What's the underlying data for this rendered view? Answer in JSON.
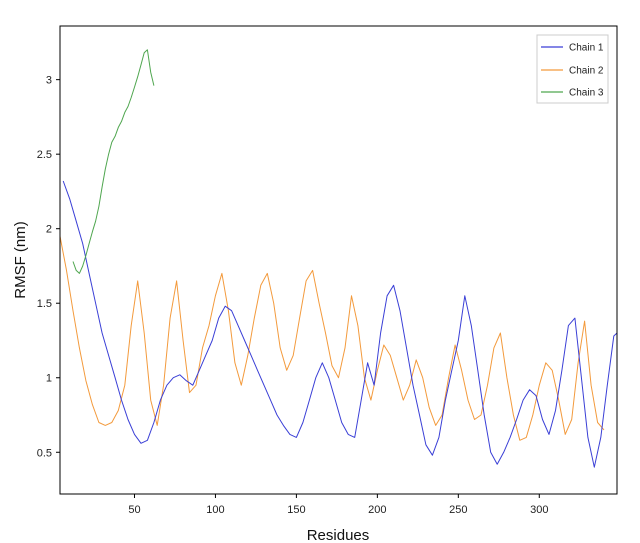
{
  "chart_data": {
    "type": "line",
    "title": "",
    "xlabel": "Residues",
    "ylabel": "RMSF (nm)",
    "xlim": [
      4,
      348
    ],
    "ylim": [
      0.22,
      3.36
    ],
    "x_ticks": [
      50,
      100,
      150,
      200,
      250,
      300
    ],
    "y_ticks": [
      0.5,
      1,
      1.5,
      2,
      2.5,
      3
    ],
    "y_tick_labels": [
      "0.5",
      "1",
      "1.5",
      "2",
      "2.5",
      "3"
    ],
    "grid": false,
    "legend_position": "top-right",
    "series": [
      {
        "name": "Chain 1",
        "color": "#3a3fd6",
        "x": [
          6,
          10,
          14,
          18,
          22,
          26,
          30,
          34,
          38,
          42,
          46,
          50,
          54,
          58,
          62,
          66,
          70,
          74,
          78,
          82,
          86,
          90,
          94,
          98,
          102,
          106,
          110,
          114,
          118,
          122,
          126,
          130,
          134,
          138,
          142,
          146,
          150,
          154,
          158,
          162,
          166,
          170,
          174,
          178,
          182,
          186,
          190,
          194,
          198,
          202,
          206,
          210,
          214,
          218,
          222,
          226,
          230,
          234,
          238,
          242,
          246,
          250,
          254,
          258,
          262,
          266,
          270,
          274,
          278,
          282,
          286,
          290,
          294,
          298,
          302,
          306,
          310,
          314,
          318,
          322,
          326,
          330,
          334,
          338,
          342,
          346,
          348
        ],
        "y": [
          2.32,
          2.2,
          2.05,
          1.9,
          1.7,
          1.5,
          1.3,
          1.15,
          1.0,
          0.85,
          0.72,
          0.62,
          0.56,
          0.58,
          0.7,
          0.85,
          0.95,
          1.0,
          1.02,
          0.98,
          0.95,
          1.05,
          1.15,
          1.25,
          1.4,
          1.48,
          1.45,
          1.35,
          1.25,
          1.15,
          1.05,
          0.95,
          0.85,
          0.75,
          0.68,
          0.62,
          0.6,
          0.7,
          0.85,
          1.0,
          1.1,
          1.0,
          0.85,
          0.7,
          0.62,
          0.6,
          0.85,
          1.1,
          0.95,
          1.3,
          1.55,
          1.62,
          1.45,
          1.2,
          0.95,
          0.75,
          0.55,
          0.48,
          0.6,
          0.85,
          1.05,
          1.25,
          1.55,
          1.35,
          1.05,
          0.75,
          0.5,
          0.42,
          0.5,
          0.6,
          0.72,
          0.85,
          0.92,
          0.88,
          0.72,
          0.62,
          0.78,
          1.05,
          1.35,
          1.4,
          1.0,
          0.6,
          0.4,
          0.6,
          0.95,
          1.28,
          1.3
        ]
      },
      {
        "name": "Chain 2",
        "color": "#f39a3c",
        "x": [
          4,
          8,
          12,
          16,
          20,
          24,
          28,
          32,
          36,
          40,
          44,
          48,
          52,
          56,
          60,
          64,
          68,
          72,
          76,
          80,
          84,
          88,
          92,
          96,
          100,
          104,
          108,
          112,
          116,
          120,
          124,
          128,
          132,
          136,
          140,
          144,
          148,
          152,
          156,
          160,
          164,
          168,
          172,
          176,
          180,
          184,
          188,
          192,
          196,
          200,
          204,
          208,
          212,
          216,
          220,
          224,
          228,
          232,
          236,
          240,
          244,
          248,
          252,
          256,
          260,
          264,
          268,
          272,
          276,
          280,
          284,
          288,
          292,
          296,
          300,
          304,
          308,
          312,
          316,
          320,
          324,
          328,
          332,
          336,
          340
        ],
        "y": [
          1.95,
          1.72,
          1.45,
          1.2,
          0.98,
          0.82,
          0.7,
          0.68,
          0.7,
          0.78,
          0.95,
          1.35,
          1.65,
          1.3,
          0.85,
          0.68,
          0.95,
          1.4,
          1.65,
          1.25,
          0.9,
          0.95,
          1.2,
          1.35,
          1.55,
          1.7,
          1.45,
          1.1,
          0.95,
          1.15,
          1.4,
          1.62,
          1.7,
          1.5,
          1.2,
          1.05,
          1.15,
          1.4,
          1.65,
          1.72,
          1.5,
          1.3,
          1.08,
          1.0,
          1.2,
          1.55,
          1.35,
          1.0,
          0.85,
          1.05,
          1.22,
          1.15,
          1.0,
          0.85,
          0.95,
          1.12,
          1.0,
          0.8,
          0.68,
          0.75,
          1.0,
          1.22,
          1.05,
          0.85,
          0.72,
          0.75,
          0.95,
          1.2,
          1.3,
          1.0,
          0.75,
          0.58,
          0.6,
          0.75,
          0.95,
          1.1,
          1.05,
          0.85,
          0.62,
          0.72,
          1.1,
          1.38,
          0.95,
          0.7,
          0.65
        ]
      },
      {
        "name": "Chain 3",
        "color": "#4fa64f",
        "x": [
          12,
          14,
          16,
          18,
          20,
          22,
          24,
          26,
          28,
          30,
          32,
          34,
          36,
          38,
          40,
          42,
          44,
          46,
          48,
          50,
          52,
          54,
          56,
          58,
          60,
          62
        ],
        "y": [
          1.78,
          1.72,
          1.7,
          1.75,
          1.82,
          1.9,
          1.98,
          2.05,
          2.15,
          2.28,
          2.4,
          2.5,
          2.58,
          2.62,
          2.68,
          2.72,
          2.78,
          2.82,
          2.88,
          2.95,
          3.02,
          3.1,
          3.18,
          3.2,
          3.05,
          2.96
        ]
      }
    ]
  }
}
